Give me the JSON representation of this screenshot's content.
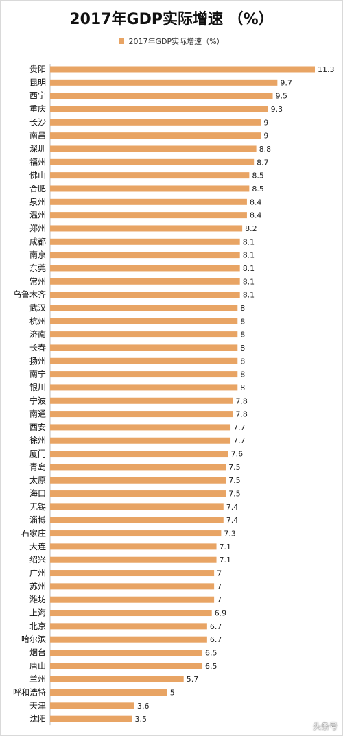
{
  "accent_color": "#e8a464",
  "chart_data": {
    "type": "bar",
    "orientation": "horizontal",
    "title": "2017年GDP实际增速 （%）",
    "legend": {
      "position": "top",
      "entries": [
        "2017年GDP实际增速（%）"
      ]
    },
    "categories": [
      "贵阳",
      "昆明",
      "西宁",
      "重庆",
      "长沙",
      "南昌",
      "深圳",
      "福州",
      "佛山",
      "合肥",
      "泉州",
      "温州",
      "郑州",
      "成都",
      "南京",
      "东莞",
      "常州",
      "乌鲁木齐",
      "武汉",
      "杭州",
      "济南",
      "长春",
      "扬州",
      "南宁",
      "银川",
      "宁波",
      "南通",
      "西安",
      "徐州",
      "厦门",
      "青岛",
      "太原",
      "海口",
      "无锡",
      "淄博",
      "石家庄",
      "大连",
      "绍兴",
      "广州",
      "苏州",
      "潍坊",
      "上海",
      "北京",
      "哈尔滨",
      "烟台",
      "唐山",
      "兰州",
      "呼和浩特",
      "天津",
      "沈阳"
    ],
    "series": [
      {
        "name": "2017年GDP实际增速（%）",
        "values": [
          11.3,
          9.7,
          9.5,
          9.3,
          9,
          9,
          8.8,
          8.7,
          8.5,
          8.5,
          8.4,
          8.4,
          8.2,
          8.1,
          8.1,
          8.1,
          8.1,
          8.1,
          8,
          8,
          8,
          8,
          8,
          8,
          8,
          7.8,
          7.8,
          7.7,
          7.7,
          7.6,
          7.5,
          7.5,
          7.5,
          7.4,
          7.4,
          7.3,
          7.1,
          7.1,
          7,
          7,
          7,
          6.9,
          6.7,
          6.7,
          6.5,
          6.5,
          5.7,
          5,
          3.6,
          3.5
        ]
      }
    ],
    "data_labels": true,
    "xlim": [
      0,
      11.3
    ],
    "grid": false
  },
  "watermark": "头条号"
}
